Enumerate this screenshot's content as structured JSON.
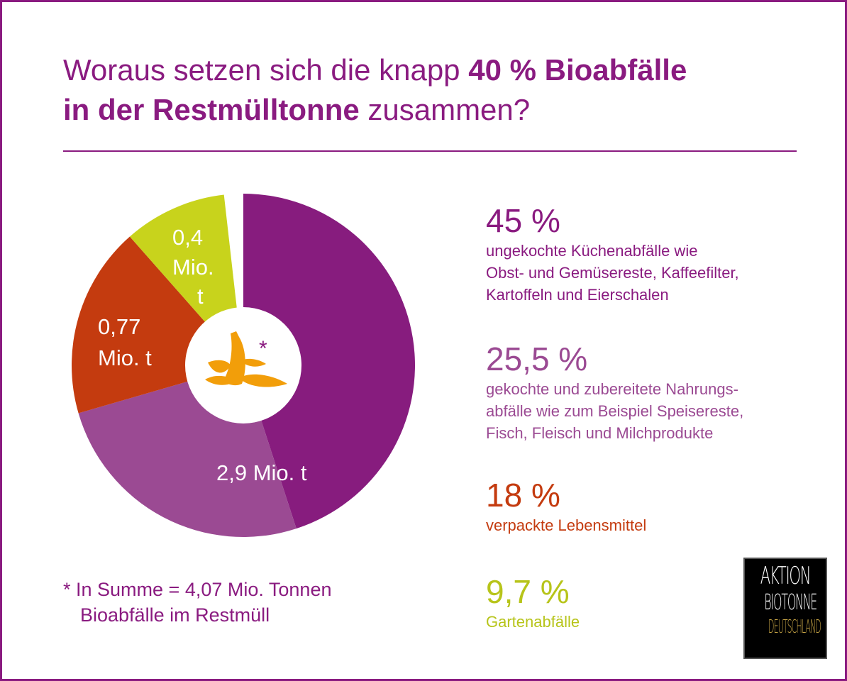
{
  "title": {
    "part1": "Woraus setzen sich die knapp ",
    "bold1": "40 % Bioabfälle",
    "bold2": "in der Restmülltonne",
    "part2": " zusammen?"
  },
  "chart_data": {
    "type": "pie",
    "donut": true,
    "categories": [
      "ungekochte Küchenabfälle",
      "gekochte und zubereitete Nahrungsabfälle",
      "verpackte Lebensmittel",
      "Gartenabfälle"
    ],
    "values": [
      45,
      25.5,
      18,
      9.7
    ],
    "unit": "%",
    "colors": [
      "#871c7e",
      "#9b4a93",
      "#c43b0f",
      "#c8d31c"
    ],
    "slice_labels": [
      {
        "slice": 1,
        "lines": [
          "2,9 Mio. t"
        ]
      },
      {
        "slice": 2,
        "lines": [
          "0,77",
          "Mio. t"
        ]
      },
      {
        "slice": 3,
        "lines": [
          "0,4",
          "Mio.",
          "t"
        ]
      }
    ],
    "center_icon": "banana-peel-icon",
    "center_mark": "*",
    "start": "top",
    "direction": "clockwise"
  },
  "legend": [
    {
      "pct": "45 %",
      "lines": [
        "ungekochte Küchenabfälle wie",
        "Obst- und Gemüsereste, Kaffeefilter,",
        "Kartoffeln und Eierschalen"
      ],
      "color": "#8a1b80"
    },
    {
      "pct": "25,5 %",
      "lines": [
        "gekochte und zubereitete Nahrungs-",
        "abfälle wie zum Beispiel Speisereste,",
        "Fisch, Fleisch und Milchprodukte"
      ],
      "color": "#9b4a93"
    },
    {
      "pct": "18 %",
      "lines": [
        "verpackte Lebensmittel"
      ],
      "color": "#c43b0f"
    },
    {
      "pct": "9,7 %",
      "lines": [
        "Gartenabfälle"
      ],
      "color": "#b7c41a"
    }
  ],
  "footnote": {
    "line1": "* In Summe = 4,07 Mio. Tonnen",
    "line2": "Bioabfälle im Restmüll"
  },
  "logo": {
    "line1": "AKTION",
    "line2": "BIOTONNE",
    "line3": "DEUTSCHLAND"
  }
}
